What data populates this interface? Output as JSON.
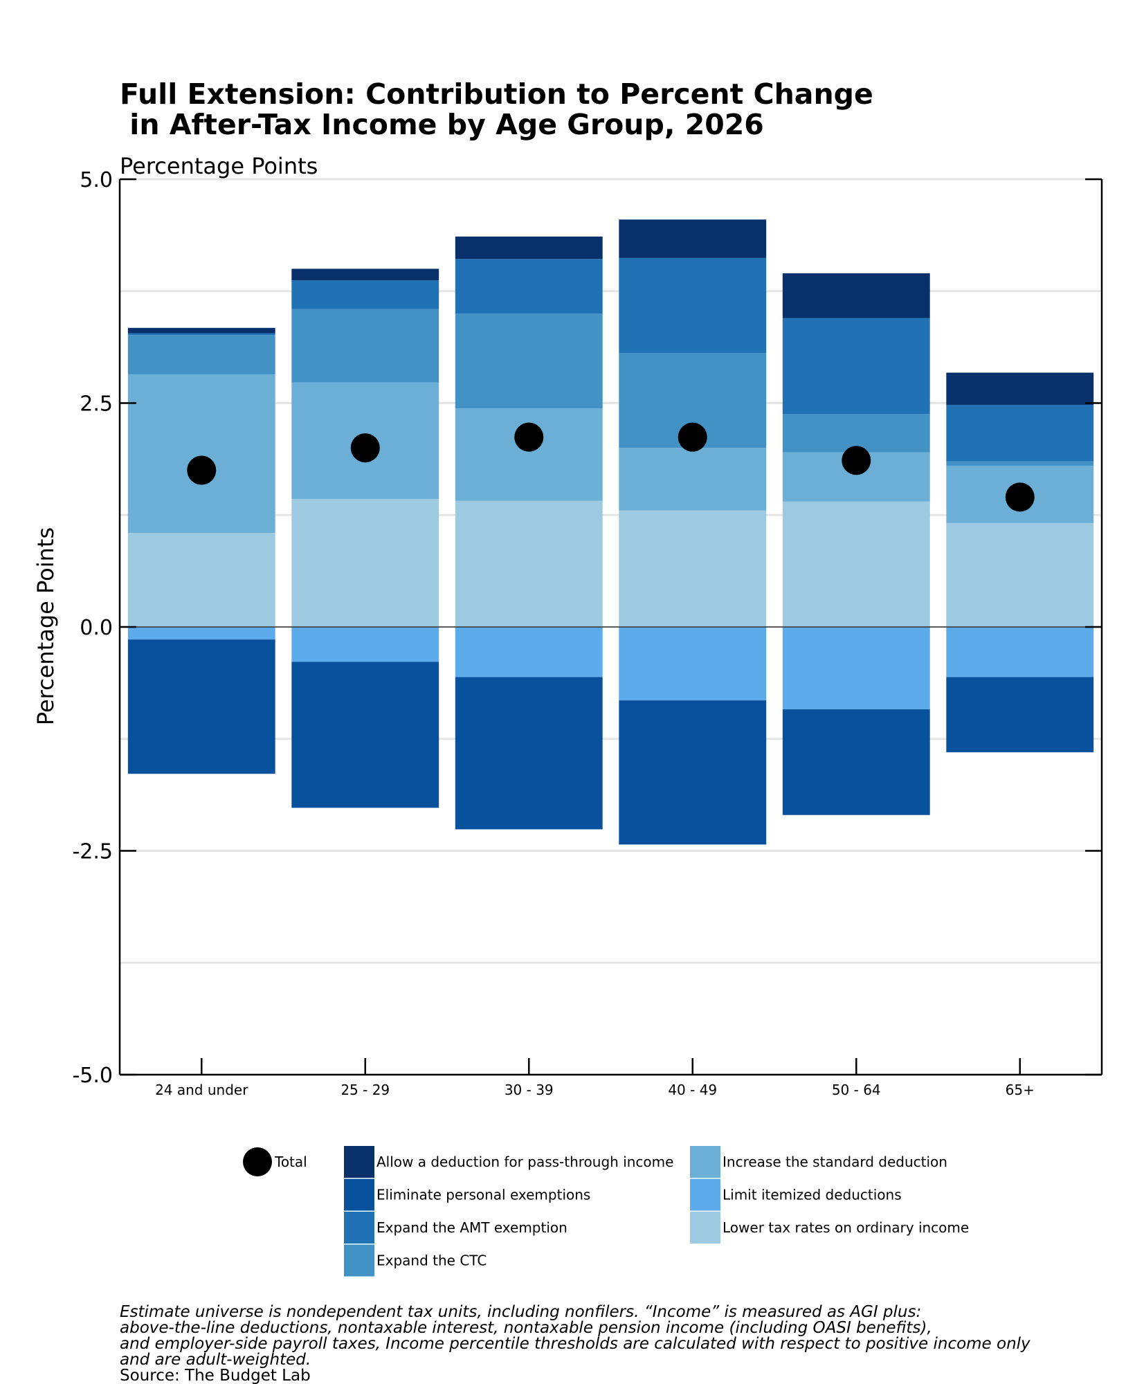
{
  "chart_data": {
    "type": "bar",
    "stacked": true,
    "title_lines": [
      "Full Extension: Contribution to Percent Change",
      " in After-Tax Income by Age Group, 2026"
    ],
    "subtitle": "Percentage Points",
    "ylabel": "Percentage Points",
    "xlabel": "",
    "ylim": [
      -5.0,
      5.0
    ],
    "yticks": [
      "5.0",
      "2.5",
      "0.0",
      "-2.5",
      "-5.0"
    ],
    "ytick_values": [
      5.0,
      2.5,
      0.0,
      -2.5,
      -5.0
    ],
    "grid": true,
    "categories": [
      "24 and under",
      "25 - 29",
      "30 - 39",
      "40 - 49",
      "50 - 64",
      "65+"
    ],
    "series": [
      {
        "name": "Lower tax rates on ordinary income",
        "color": "#9ecae1",
        "values": [
          1.05,
          1.43,
          1.41,
          1.3,
          1.4,
          1.16
        ]
      },
      {
        "name": "Increase the standard deduction",
        "color": "#6baed6",
        "values": [
          1.77,
          1.3,
          1.03,
          0.7,
          0.55,
          0.64
        ]
      },
      {
        "name": "Expand the CTC",
        "color": "#4292c6",
        "values": [
          0.44,
          0.82,
          1.06,
          1.06,
          0.43,
          0.05
        ]
      },
      {
        "name": "Expand the AMT exemption",
        "color": "#2171b5",
        "values": [
          0.02,
          0.32,
          0.61,
          1.06,
          1.07,
          0.63
        ]
      },
      {
        "name": "Allow a deduction for pass-through income",
        "color": "#08306b",
        "values": [
          0.06,
          0.13,
          0.25,
          0.43,
          0.5,
          0.36
        ]
      },
      {
        "name": "Limit itemized deductions",
        "color": "#5dabeb",
        "values": [
          -0.14,
          -0.39,
          -0.56,
          -0.82,
          -0.92,
          -0.56
        ]
      },
      {
        "name": "Eliminate personal exemptions",
        "color": "#08519c",
        "values": [
          -1.5,
          -1.63,
          -1.7,
          -1.61,
          -1.18,
          -0.84
        ]
      }
    ],
    "total": {
      "name": "Total",
      "values": [
        1.75,
        2.0,
        2.12,
        2.12,
        1.86,
        1.45
      ]
    },
    "legend": {
      "placement": "bottom",
      "columns": [
        [
          "Total"
        ],
        [
          "Allow a deduction for pass-through income",
          "Eliminate personal exemptions",
          "Expand the AMT exemption",
          "Expand the CTC"
        ],
        [
          "Increase the standard deduction",
          "Limit itemized deductions",
          "Lower tax rates on ordinary income"
        ]
      ]
    },
    "notes": [
      "Estimate universe is nondependent tax units, including nonfilers. “Income” is measured as AGI plus:",
      "above-the-line deductions, nontaxable interest, nontaxable pension income (including OASI benefits),",
      "and employer-side payroll taxes, Income percentile thresholds are calculated with respect to positive income only",
      "and are adult-weighted."
    ],
    "source": "Source: The Budget Lab"
  }
}
